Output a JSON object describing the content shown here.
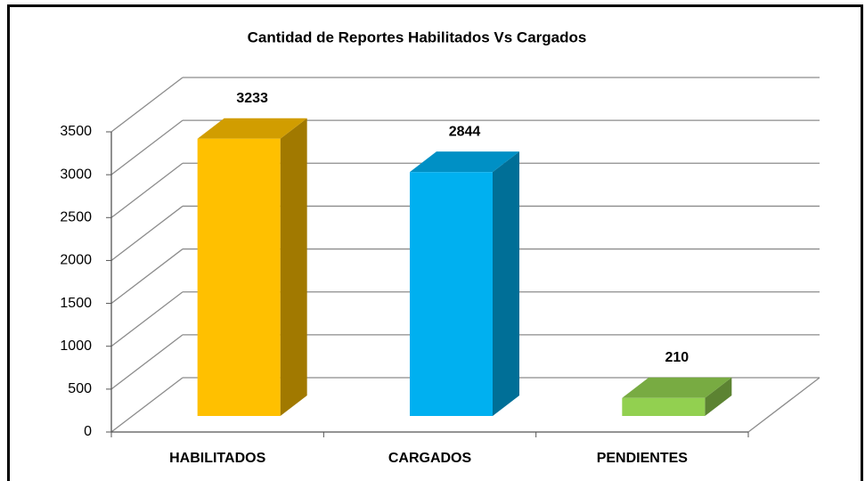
{
  "chart_data": {
    "type": "bar3d",
    "title": "Cantidad de Reportes Habilitados Vs Cargados",
    "categories": [
      "HABILITADOS",
      "CARGADOS",
      "PENDIENTES"
    ],
    "values": [
      3233,
      2844,
      210
    ],
    "colors": [
      "#FFC000",
      "#00B0F0",
      "#92D050"
    ],
    "ylim": [
      0,
      3500
    ],
    "yticks": [
      0,
      500,
      1000,
      1500,
      2000,
      2500,
      3000,
      3500
    ],
    "grid": true
  }
}
